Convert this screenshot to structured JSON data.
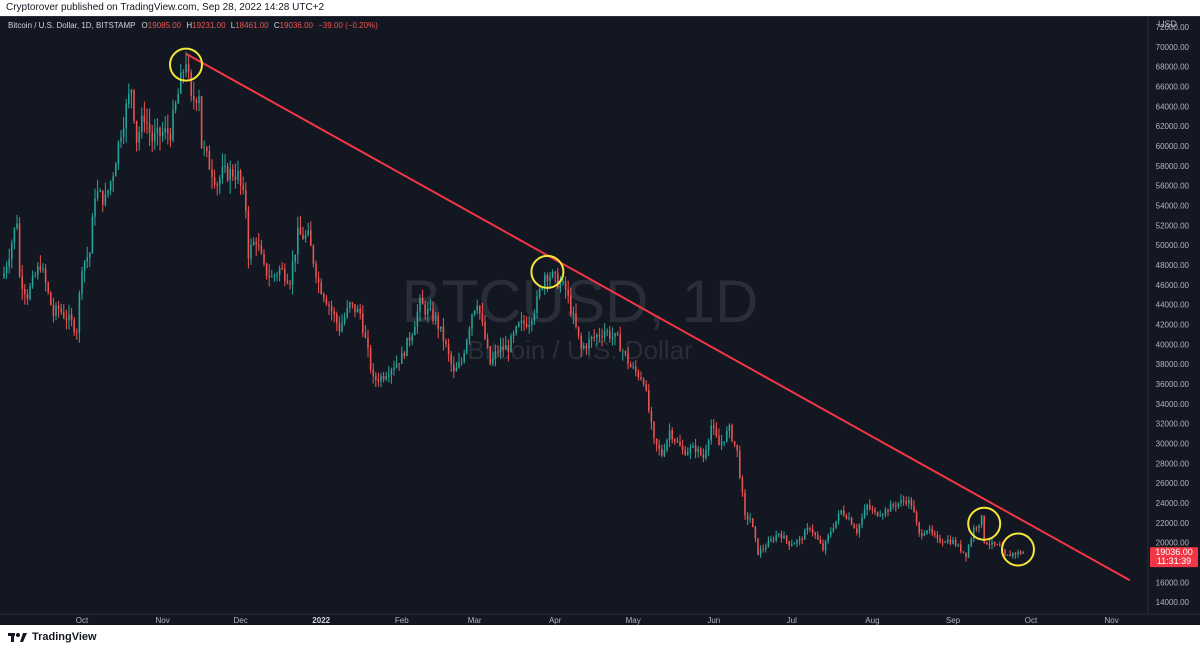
{
  "header": {
    "published": "Cryptorover published on TradingView.com, Sep 28, 2022 14:28 UTC+2"
  },
  "legend": {
    "symbol": "Bitcoin / U.S. Dollar, 1D, BITSTAMP",
    "open_label": "O",
    "open": "19085.00",
    "high_label": "H",
    "high": "19231.00",
    "low_label": "L",
    "low": "18461.00",
    "close_label": "C",
    "close": "19036.00",
    "change": "−39.00 (−0.20%)"
  },
  "watermark": {
    "ticker": "BTCUSD, 1D",
    "name": "Bitcoin / U.S. Dollar"
  },
  "price_tag": {
    "price": "19036.00",
    "countdown": "11:31:39"
  },
  "footer": {
    "brand": "TradingView"
  },
  "colors": {
    "background": "#131722",
    "up": "#26a69a",
    "down": "#ef5350",
    "trendline": "#f23645",
    "highlight": "#f5e63a",
    "axis_text": "#b2b5be",
    "price_tag": "#f23645"
  },
  "chart_data": {
    "type": "candlestick",
    "currency": "USD",
    "y_range": [
      12800,
      73000
    ],
    "y_ticks": [
      14000,
      16000,
      18000,
      20000,
      22000,
      24000,
      26000,
      28000,
      30000,
      32000,
      34000,
      36000,
      38000,
      40000,
      42000,
      44000,
      46000,
      48000,
      50000,
      52000,
      54000,
      56000,
      58000,
      60000,
      62000,
      64000,
      66000,
      68000,
      70000,
      72000
    ],
    "x_range": [
      "2021-09-01",
      "2022-11-15"
    ],
    "x_ticks": [
      {
        "label": "Oct",
        "date": "2021-10-01"
      },
      {
        "label": "Nov",
        "date": "2021-11-01"
      },
      {
        "label": "Dec",
        "date": "2021-12-01"
      },
      {
        "label": "2022",
        "date": "2022-01-01",
        "bold": true
      },
      {
        "label": "Feb",
        "date": "2022-02-01"
      },
      {
        "label": "Mar",
        "date": "2022-03-01"
      },
      {
        "label": "Apr",
        "date": "2022-04-01"
      },
      {
        "label": "May",
        "date": "2022-05-01"
      },
      {
        "label": "Jun",
        "date": "2022-06-01"
      },
      {
        "label": "Jul",
        "date": "2022-07-01"
      },
      {
        "label": "Aug",
        "date": "2022-08-01"
      },
      {
        "label": "Sep",
        "date": "2022-09-01"
      },
      {
        "label": "Oct",
        "date": "2022-10-01"
      },
      {
        "label": "Nov",
        "date": "2022-11-01"
      }
    ],
    "series": [
      {
        "values": [
          [
            "2021-09-01",
            47200
          ],
          [
            "2021-09-03",
            49200
          ],
          [
            "2021-09-06",
            52600
          ],
          [
            "2021-09-07",
            46800
          ],
          [
            "2021-09-10",
            45000
          ],
          [
            "2021-09-15",
            48100
          ],
          [
            "2021-09-20",
            43000
          ],
          [
            "2021-09-22",
            43600
          ],
          [
            "2021-09-25",
            42700
          ],
          [
            "2021-09-29",
            41500
          ],
          [
            "2021-10-01",
            48100
          ],
          [
            "2021-10-04",
            49200
          ],
          [
            "2021-10-06",
            55300
          ],
          [
            "2021-10-10",
            54600
          ],
          [
            "2021-10-13",
            57400
          ],
          [
            "2021-10-16",
            61600
          ],
          [
            "2021-10-20",
            65900
          ],
          [
            "2021-10-22",
            60700
          ],
          [
            "2021-10-25",
            63100
          ],
          [
            "2021-10-28",
            60600
          ],
          [
            "2021-11-01",
            61300
          ],
          [
            "2021-11-04",
            61400
          ],
          [
            "2021-11-08",
            66500
          ],
          [
            "2021-11-10",
            68800
          ],
          [
            "2021-11-12",
            64400
          ],
          [
            "2021-11-15",
            65500
          ],
          [
            "2021-11-16",
            60100
          ],
          [
            "2021-11-19",
            58100
          ],
          [
            "2021-11-22",
            56300
          ],
          [
            "2021-11-24",
            57200
          ],
          [
            "2021-11-28",
            57300
          ],
          [
            "2021-11-30",
            57000
          ],
          [
            "2021-12-03",
            53700
          ],
          [
            "2021-12-04",
            49200
          ],
          [
            "2021-12-07",
            50600
          ],
          [
            "2021-12-10",
            47600
          ],
          [
            "2021-12-13",
            46700
          ],
          [
            "2021-12-16",
            47600
          ],
          [
            "2021-12-20",
            46600
          ],
          [
            "2021-12-23",
            51000
          ],
          [
            "2021-12-27",
            50800
          ],
          [
            "2021-12-31",
            46200
          ],
          [
            "2022-01-05",
            43400
          ],
          [
            "2022-01-08",
            41600
          ],
          [
            "2022-01-12",
            43900
          ],
          [
            "2022-01-16",
            43100
          ],
          [
            "2022-01-21",
            36400
          ],
          [
            "2022-01-24",
            36700
          ],
          [
            "2022-01-28",
            37700
          ],
          [
            "2022-02-01",
            38700
          ],
          [
            "2022-02-05",
            41400
          ],
          [
            "2022-02-08",
            44100
          ],
          [
            "2022-02-10",
            43500
          ],
          [
            "2022-02-14",
            42500
          ],
          [
            "2022-02-17",
            40600
          ],
          [
            "2022-02-21",
            37000
          ],
          [
            "2022-02-24",
            38300
          ],
          [
            "2022-02-28",
            43200
          ],
          [
            "2022-03-02",
            44400
          ],
          [
            "2022-03-07",
            38000
          ],
          [
            "2022-03-10",
            39400
          ],
          [
            "2022-03-14",
            39700
          ],
          [
            "2022-03-18",
            41800
          ],
          [
            "2022-03-22",
            42400
          ],
          [
            "2022-03-25",
            44300
          ],
          [
            "2022-03-28",
            47100
          ],
          [
            "2022-03-30",
            47000
          ],
          [
            "2022-04-02",
            46300
          ],
          [
            "2022-04-05",
            45500
          ],
          [
            "2022-04-07",
            43600
          ],
          [
            "2022-04-11",
            39500
          ],
          [
            "2022-04-15",
            40500
          ],
          [
            "2022-04-20",
            41400
          ],
          [
            "2022-04-25",
            40400
          ],
          [
            "2022-04-30",
            37700
          ],
          [
            "2022-05-05",
            36500
          ],
          [
            "2022-05-09",
            30100
          ],
          [
            "2022-05-12",
            28900
          ],
          [
            "2022-05-15",
            31300
          ],
          [
            "2022-05-20",
            29200
          ],
          [
            "2022-05-25",
            29500
          ],
          [
            "2022-05-28",
            28600
          ],
          [
            "2022-05-31",
            31800
          ],
          [
            "2022-06-03",
            29800
          ],
          [
            "2022-06-07",
            31400
          ],
          [
            "2022-06-10",
            29100
          ],
          [
            "2022-06-13",
            22500
          ],
          [
            "2022-06-15",
            22500
          ],
          [
            "2022-06-18",
            19000
          ],
          [
            "2022-06-22",
            19900
          ],
          [
            "2022-06-26",
            21000
          ],
          [
            "2022-06-30",
            19900
          ],
          [
            "2022-07-04",
            20200
          ],
          [
            "2022-07-08",
            21600
          ],
          [
            "2022-07-13",
            19300
          ],
          [
            "2022-07-16",
            21200
          ],
          [
            "2022-07-20",
            23200
          ],
          [
            "2022-07-23",
            22500
          ],
          [
            "2022-07-26",
            21200
          ],
          [
            "2022-07-30",
            23700
          ],
          [
            "2022-08-02",
            22900
          ],
          [
            "2022-08-06",
            23200
          ],
          [
            "2022-08-10",
            23900
          ],
          [
            "2022-08-14",
            24300
          ],
          [
            "2022-08-16",
            23900
          ],
          [
            "2022-08-19",
            20800
          ],
          [
            "2022-08-22",
            21400
          ],
          [
            "2022-08-26",
            20200
          ],
          [
            "2022-08-29",
            20300
          ],
          [
            "2022-09-01",
            20100
          ],
          [
            "2022-09-06",
            18800
          ],
          [
            "2022-09-09",
            21400
          ],
          [
            "2022-09-12",
            22400
          ],
          [
            "2022-09-13",
            20200
          ],
          [
            "2022-09-16",
            19800
          ],
          [
            "2022-09-19",
            19500
          ],
          [
            "2022-09-21",
            18500
          ],
          [
            "2022-09-24",
            18900
          ],
          [
            "2022-09-28",
            19036
          ]
        ]
      }
    ],
    "trendline": {
      "from": [
        "2021-11-10",
        69300
      ],
      "to": [
        "2022-11-08",
        16200
      ]
    },
    "highlights": [
      {
        "date": "2021-11-10",
        "price": 68200
      },
      {
        "date": "2022-03-29",
        "price": 47300
      },
      {
        "date": "2022-09-13",
        "price": 21900
      },
      {
        "date": "2022-09-26",
        "price": 19300
      }
    ]
  }
}
